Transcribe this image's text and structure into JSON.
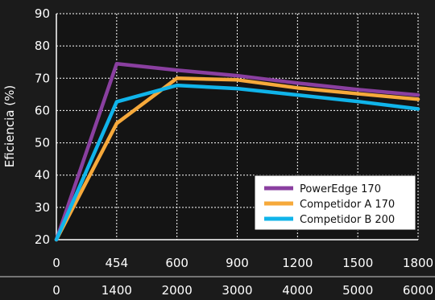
{
  "chart_data": {
    "type": "line",
    "ylabel": "Eficiencia (%)",
    "ylim": [
      20,
      90
    ],
    "y_ticks": [
      "20",
      "30",
      "40",
      "50",
      "60",
      "70",
      "80",
      "90"
    ],
    "x_ticks_top": [
      "0",
      "454",
      "600",
      "900",
      "1200",
      "1500",
      "1800"
    ],
    "x_ticks_bottom": [
      "0",
      "1400",
      "2000",
      "3000",
      "4000",
      "5000",
      "6000"
    ],
    "grid": true,
    "legend_position": "bottom-right",
    "series": [
      {
        "name": "PowerEdge 170",
        "color": "#8a3fa0",
        "values": [
          20,
          74.5,
          72.5,
          70.8,
          68.5,
          66.5,
          64.8
        ]
      },
      {
        "name": "Competidor A 170",
        "color": "#f6a93b",
        "values": [
          20,
          56,
          70,
          69.5,
          67,
          65.2,
          63.5
        ]
      },
      {
        "name": "Competidor B 200",
        "color": "#10b4ea",
        "values": [
          20,
          62.7,
          67.8,
          66.8,
          64.8,
          62.8,
          60.5
        ]
      }
    ]
  }
}
